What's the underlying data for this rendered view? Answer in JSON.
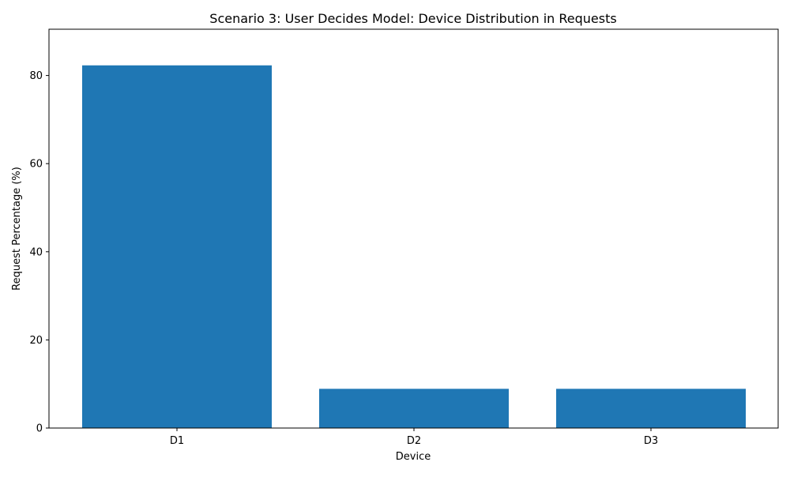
{
  "chart_data": {
    "type": "bar",
    "title": "Scenario 3: User Decides Model: Device Distribution in Requests",
    "xlabel": "Device",
    "ylabel": "Request Percentage (%)",
    "categories": [
      "D1",
      "D2",
      "D3"
    ],
    "values": [
      82.3,
      8.9,
      8.9
    ],
    "ylim": [
      0,
      90.5
    ],
    "yticks": [
      0,
      20,
      40,
      60,
      80
    ],
    "bar_color": "#1f77b4",
    "grid": false,
    "legend": "none"
  }
}
